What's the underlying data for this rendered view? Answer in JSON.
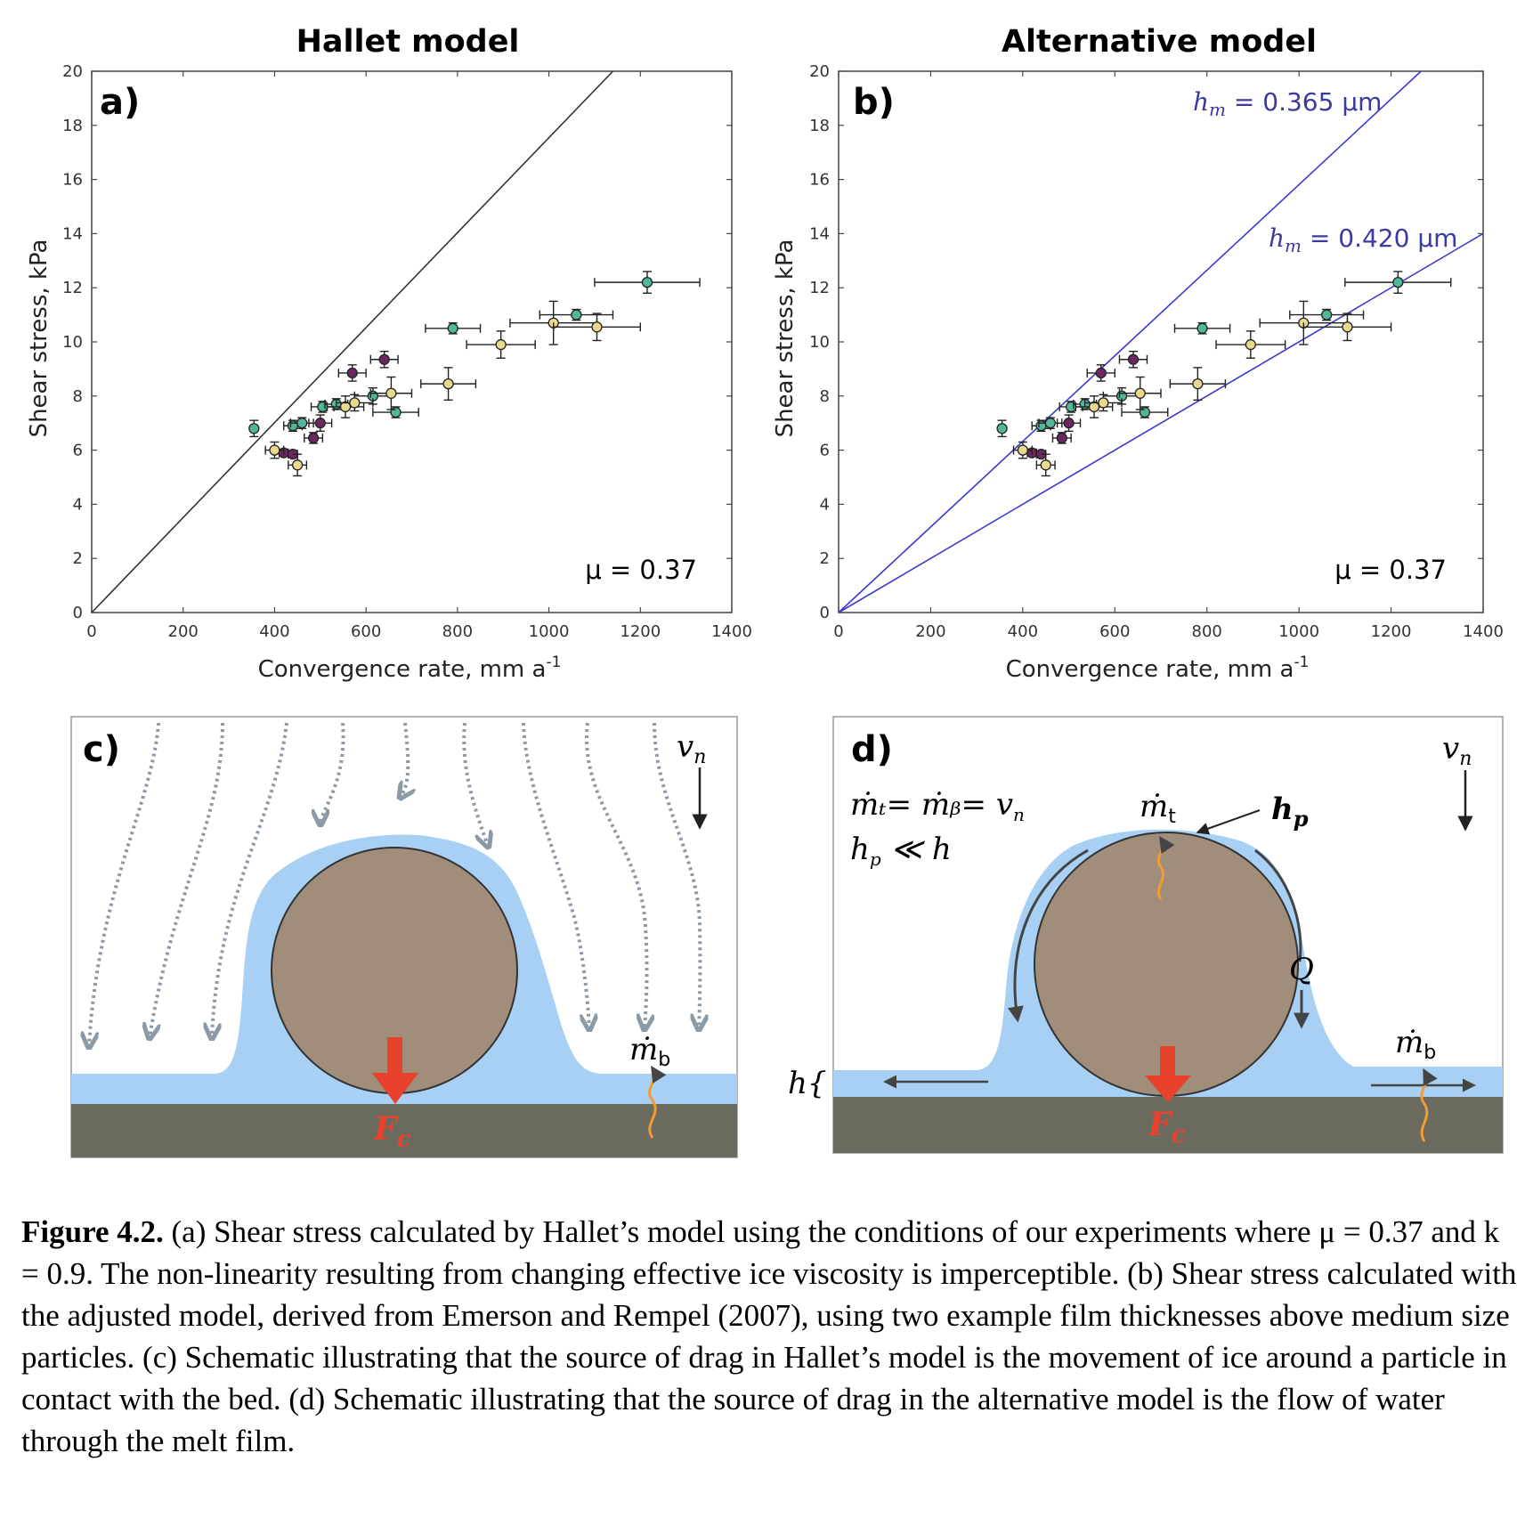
{
  "panel_a": {
    "title": "Hallet model",
    "label": "a)",
    "annotation": "μ = 0.37"
  },
  "panel_b": {
    "title": "Alternative model",
    "label": "b)",
    "annotation": "μ = 0.37",
    "line1_label": "h",
    "line1_sub": "m",
    "line1_value": " = 0.365 μm",
    "line2_label": "h",
    "line2_sub": "m",
    "line2_value": " = 0.420 μm"
  },
  "axes": {
    "ylabel": "Shear stress, kPa",
    "xlabel": "Convergence rate, mm a",
    "xlabel_sup": "-1",
    "xticks": [
      "0",
      "200",
      "400",
      "600",
      "800",
      "1000",
      "1200",
      "1400"
    ],
    "yticks": [
      "0",
      "2",
      "4",
      "6",
      "8",
      "10",
      "12",
      "14",
      "16",
      "18",
      "20"
    ]
  },
  "panel_c": {
    "label": "c)",
    "vn": "v",
    "vn_sub": "n",
    "mb": "ṁ",
    "mb_sub": "b",
    "force": "F",
    "force_sub": "c"
  },
  "panel_d": {
    "label": "d)",
    "eq1": "ṁₜ= ṁᵦ= v",
    "eq1_sub": "n",
    "eq2": "h",
    "eq2_sub": "p",
    "eq2_rest": " ≪ h",
    "mt": "ṁ",
    "mt_sub": "t",
    "hp": "h",
    "hp_sub": "p",
    "q": "Q",
    "vn": "v",
    "vn_sub": "n",
    "mb": "ṁ",
    "mb_sub": "b",
    "h": "h{",
    "force": "F",
    "force_sub": "c"
  },
  "caption": {
    "lead": "Figure 4.2.",
    "text": " (a) Shear stress calculated by Hallet’s model using the conditions of our experiments where μ = 0.37 and k = 0.9. The non-linearity resulting from changing effective ice viscosity is imperceptible. (b) Shear stress calculated with the adjusted model, derived from Emerson and Rempel (2007), using two example film thicknesses above medium size particles. (c) Schematic illustrating that the source of drag in Hallet’s model is the movement of ice around a particle in contact with the bed. (d) Schematic illustrating that the source of drag in the alternative model is the flow of water through the melt film."
  },
  "colors": {
    "teal": "#52b69a",
    "purple": "#6b2860",
    "yellow": "#e9d98f",
    "blue_marker": "#3d78b4",
    "fit_line": "#3a3ad0",
    "hallet_line": "#333333",
    "water": "#a8d0f5",
    "bed": "#6b6a5f",
    "particle": "#a08d7a",
    "force": "#e8412c",
    "heat": "#f29b30",
    "arrows": "#8c99a6"
  },
  "chart_data": [
    {
      "type": "scatter",
      "title": "Hallet model",
      "xlabel": "Convergence rate, mm a-1",
      "ylabel": "Shear stress, kPa",
      "xlim": [
        0,
        1400
      ],
      "ylim": [
        0,
        20
      ],
      "grid": false,
      "annotation": "μ = 0.37",
      "series": [
        {
          "color": "teal",
          "points": [
            {
              "x": 355,
              "y": 6.8,
              "xerr": 0,
              "yerr": 0.3
            },
            {
              "x": 440,
              "y": 6.9,
              "xerr": 20,
              "yerr": 0.2
            },
            {
              "x": 460,
              "y": 7.0,
              "xerr": 25,
              "yerr": 0.2
            },
            {
              "x": 505,
              "y": 7.6,
              "xerr": 25,
              "yerr": 0.2
            },
            {
              "x": 535,
              "y": 7.7,
              "xerr": 25,
              "yerr": 0.2
            },
            {
              "x": 615,
              "y": 8.0,
              "xerr": 40,
              "yerr": 0.3
            },
            {
              "x": 665,
              "y": 7.4,
              "xerr": 50,
              "yerr": 0.2
            },
            {
              "x": 790,
              "y": 10.5,
              "xerr": 60,
              "yerr": 0.2
            },
            {
              "x": 1060,
              "y": 11.0,
              "xerr": 80,
              "yerr": 0.2
            },
            {
              "x": 1215,
              "y": 12.2,
              "xerr": 115,
              "yerr": 0.4
            }
          ]
        },
        {
          "color": "purple",
          "points": [
            {
              "x": 420,
              "y": 5.9,
              "xerr": 10,
              "yerr": 0.1
            },
            {
              "x": 440,
              "y": 5.85,
              "xerr": 10,
              "yerr": 0.1
            },
            {
              "x": 485,
              "y": 6.45,
              "xerr": 20,
              "yerr": 0.2
            },
            {
              "x": 500,
              "y": 7.0,
              "xerr": 25,
              "yerr": 0.3
            },
            {
              "x": 570,
              "y": 8.85,
              "xerr": 30,
              "yerr": 0.3
            },
            {
              "x": 640,
              "y": 9.35,
              "xerr": 30,
              "yerr": 0.3
            }
          ]
        },
        {
          "color": "yellow",
          "points": [
            {
              "x": 400,
              "y": 6.0,
              "xerr": 20,
              "yerr": 0.3
            },
            {
              "x": 450,
              "y": 5.45,
              "xerr": 20,
              "yerr": 0.4
            },
            {
              "x": 555,
              "y": 7.6,
              "xerr": 40,
              "yerr": 0.4
            },
            {
              "x": 575,
              "y": 7.75,
              "xerr": 40,
              "yerr": 0.3
            },
            {
              "x": 655,
              "y": 8.1,
              "xerr": 45,
              "yerr": 0.6
            },
            {
              "x": 780,
              "y": 8.45,
              "xerr": 60,
              "yerr": 0.6
            },
            {
              "x": 895,
              "y": 9.9,
              "xerr": 75,
              "yerr": 0.5
            },
            {
              "x": 1010,
              "y": 10.7,
              "xerr": 95,
              "yerr": 0.8
            },
            {
              "x": 1105,
              "y": 10.55,
              "xerr": 95,
              "yerr": 0.5
            }
          ]
        }
      ],
      "lines": [
        {
          "name": "Hallet model",
          "x": [
            0,
            1140
          ],
          "y": [
            0,
            20
          ]
        }
      ]
    },
    {
      "type": "scatter",
      "title": "Alternative model",
      "xlabel": "Convergence rate, mm a-1",
      "ylabel": "Shear stress, kPa",
      "xlim": [
        0,
        1400
      ],
      "ylim": [
        0,
        20
      ],
      "grid": false,
      "annotation": "μ = 0.37",
      "series": "same as panel a",
      "lines": [
        {
          "name": "hm = 0.365 μm",
          "x": [
            0,
            1265
          ],
          "y": [
            0,
            20
          ]
        },
        {
          "name": "hm = 0.420 μm",
          "x": [
            0,
            1400
          ],
          "y": [
            0,
            14
          ]
        }
      ]
    }
  ]
}
